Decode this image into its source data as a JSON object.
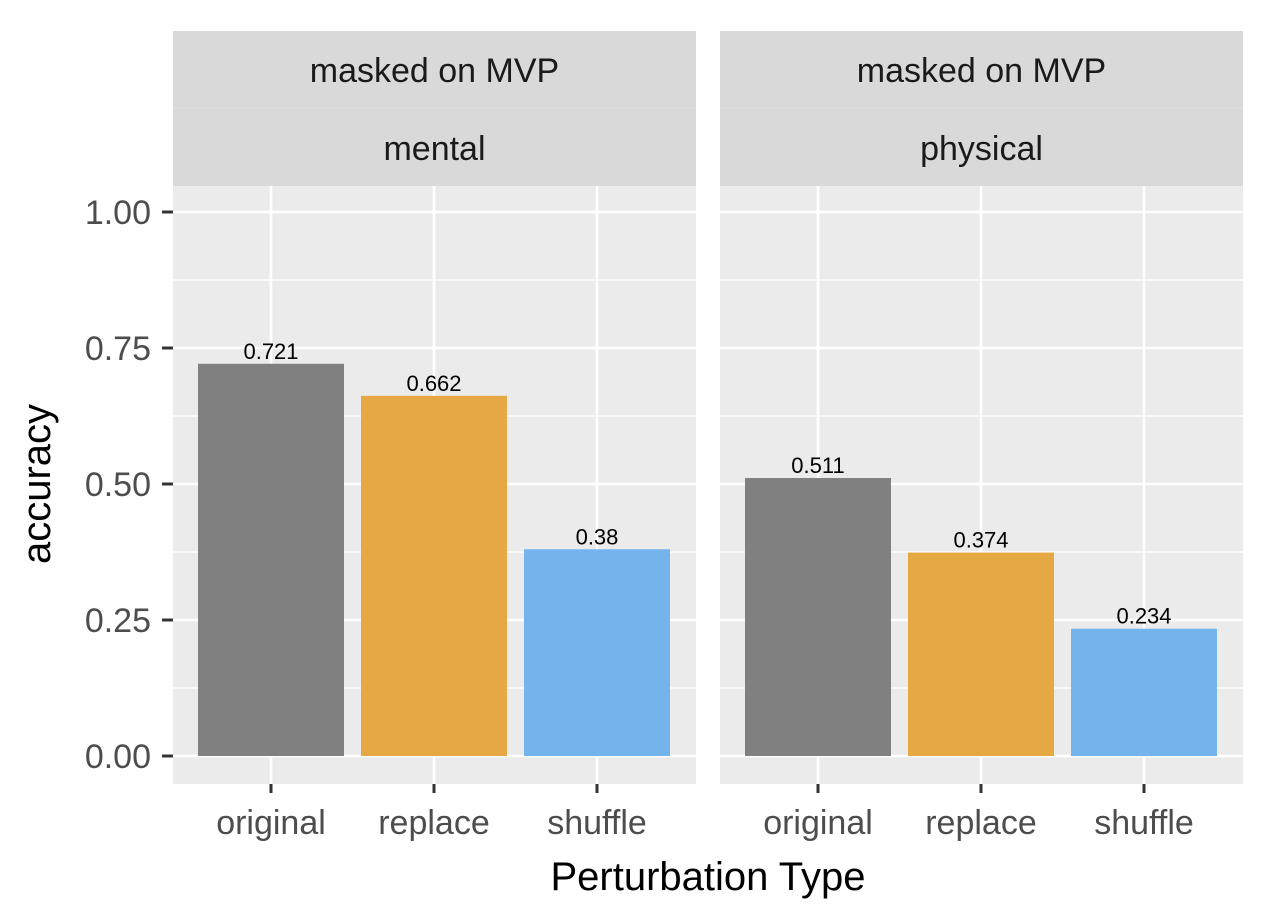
{
  "chart_data": {
    "type": "bar",
    "xlabel": "Perturbation Type",
    "ylabel": "accuracy",
    "ylim": [
      0,
      1
    ],
    "yticks": [
      "0.00",
      "0.25",
      "0.50",
      "0.75",
      "1.00"
    ],
    "ytick_values": [
      0,
      0.25,
      0.5,
      0.75,
      1.0
    ],
    "categories": [
      "original",
      "replace",
      "shuffle"
    ],
    "colors": [
      "#808080",
      "#E6A843",
      "#74B3EC"
    ],
    "grid": true,
    "legend": "none",
    "panels": [
      {
        "strip_top": "masked on MVP",
        "strip_bottom": "mental",
        "values": [
          0.721,
          0.662,
          0.38
        ],
        "labels": [
          "0.721",
          "0.662",
          "0.38"
        ]
      },
      {
        "strip_top": "masked on MVP",
        "strip_bottom": "physical",
        "values": [
          0.511,
          0.374,
          0.234
        ],
        "labels": [
          "0.511",
          "0.374",
          "0.234"
        ]
      }
    ]
  }
}
